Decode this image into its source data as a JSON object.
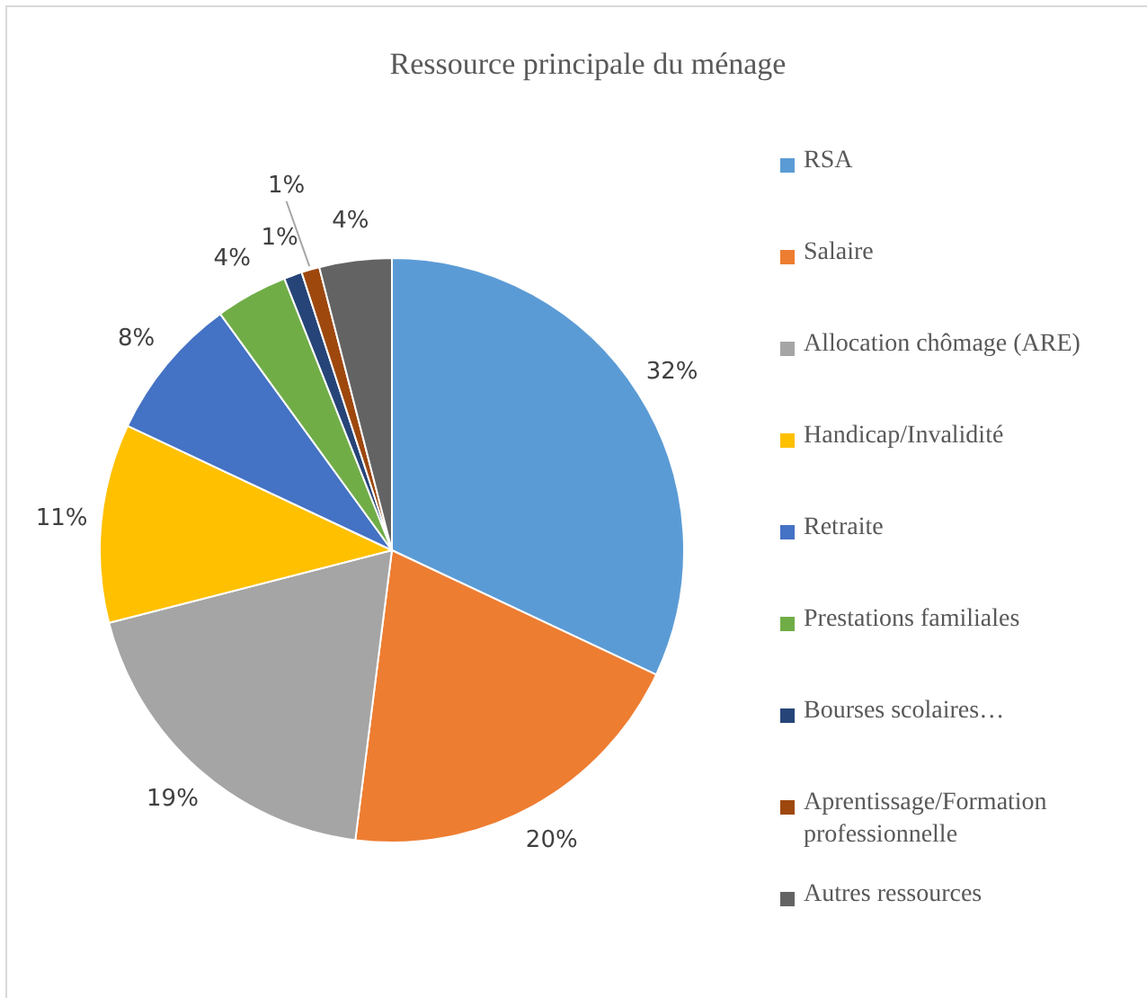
{
  "chart_data": {
    "type": "pie",
    "title": "Ressource principale du ménage",
    "categories": [
      "RSA",
      "Salaire",
      "Allocation chômage (ARE)",
      "Handicap/Invalidité",
      "Retraite",
      "Prestations familiales",
      "Bourses scolaires…",
      "Aprentissage/Formation professionnelle",
      "Autres ressources"
    ],
    "values": [
      32,
      20,
      19,
      11,
      8,
      4,
      1,
      1,
      4
    ],
    "value_labels": [
      "32%",
      "20%",
      "19%",
      "11%",
      "8%",
      "4%",
      "1%",
      "1%",
      "4%"
    ],
    "colors": [
      "#5b9bd5",
      "#ed7d31",
      "#a5a5a5",
      "#ffc000",
      "#4472c4",
      "#70ad47",
      "#264478",
      "#9e480e",
      "#636363"
    ],
    "legend": "right"
  }
}
